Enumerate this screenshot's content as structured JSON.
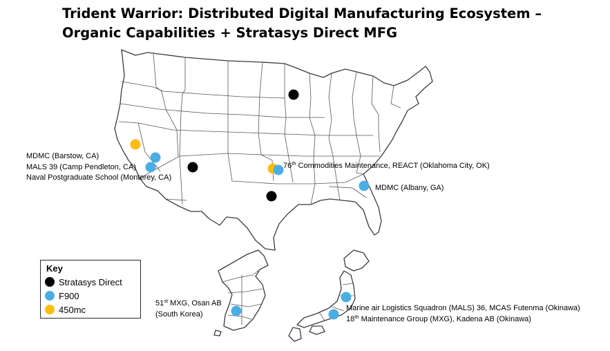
{
  "title_line1": "Trident Warrior: Distributed Digital Manufacturing Ecosystem –",
  "title_line2": "Organic Capabilities + Stratasys Direct MFG",
  "colors": {
    "stratasys_direct": "#000000",
    "f900": "#4aaee4",
    "mc450": "#fbbd12"
  },
  "legend": {
    "title": "Key",
    "items": [
      {
        "label": "Stratasys Direct",
        "color": "#000000"
      },
      {
        "label": "F900",
        "color": "#4aaee4"
      },
      {
        "label": "450mc",
        "color": "#fbbd12"
      }
    ]
  },
  "labels": {
    "ca_1": "MDMC (Barstow, CA)",
    "ca_2": "MALS 39 (Camp Pendleton, CA)",
    "ca_3": "Naval Postgraduate School (Monterey, CA)",
    "ok_num": "76",
    "ok_sup": "th",
    "ok_rest": " Commodities Maintenance, REACT (Oklahoma City, OK)",
    "ga": "MDMC (Albany, GA)",
    "kr_num": "51",
    "kr_sup": "st",
    "kr_rest": " MXG, Osan AB",
    "kr_line2": "(South Korea)",
    "jp_1": "Marine air Logistics Squadron (MALS) 36, MCAS Futenma (Okinawa)",
    "jp_num": "18",
    "jp_sup": "th",
    "jp_rest": " Maintenance Group (MXG), Kadena AB (Okinawa)"
  }
}
